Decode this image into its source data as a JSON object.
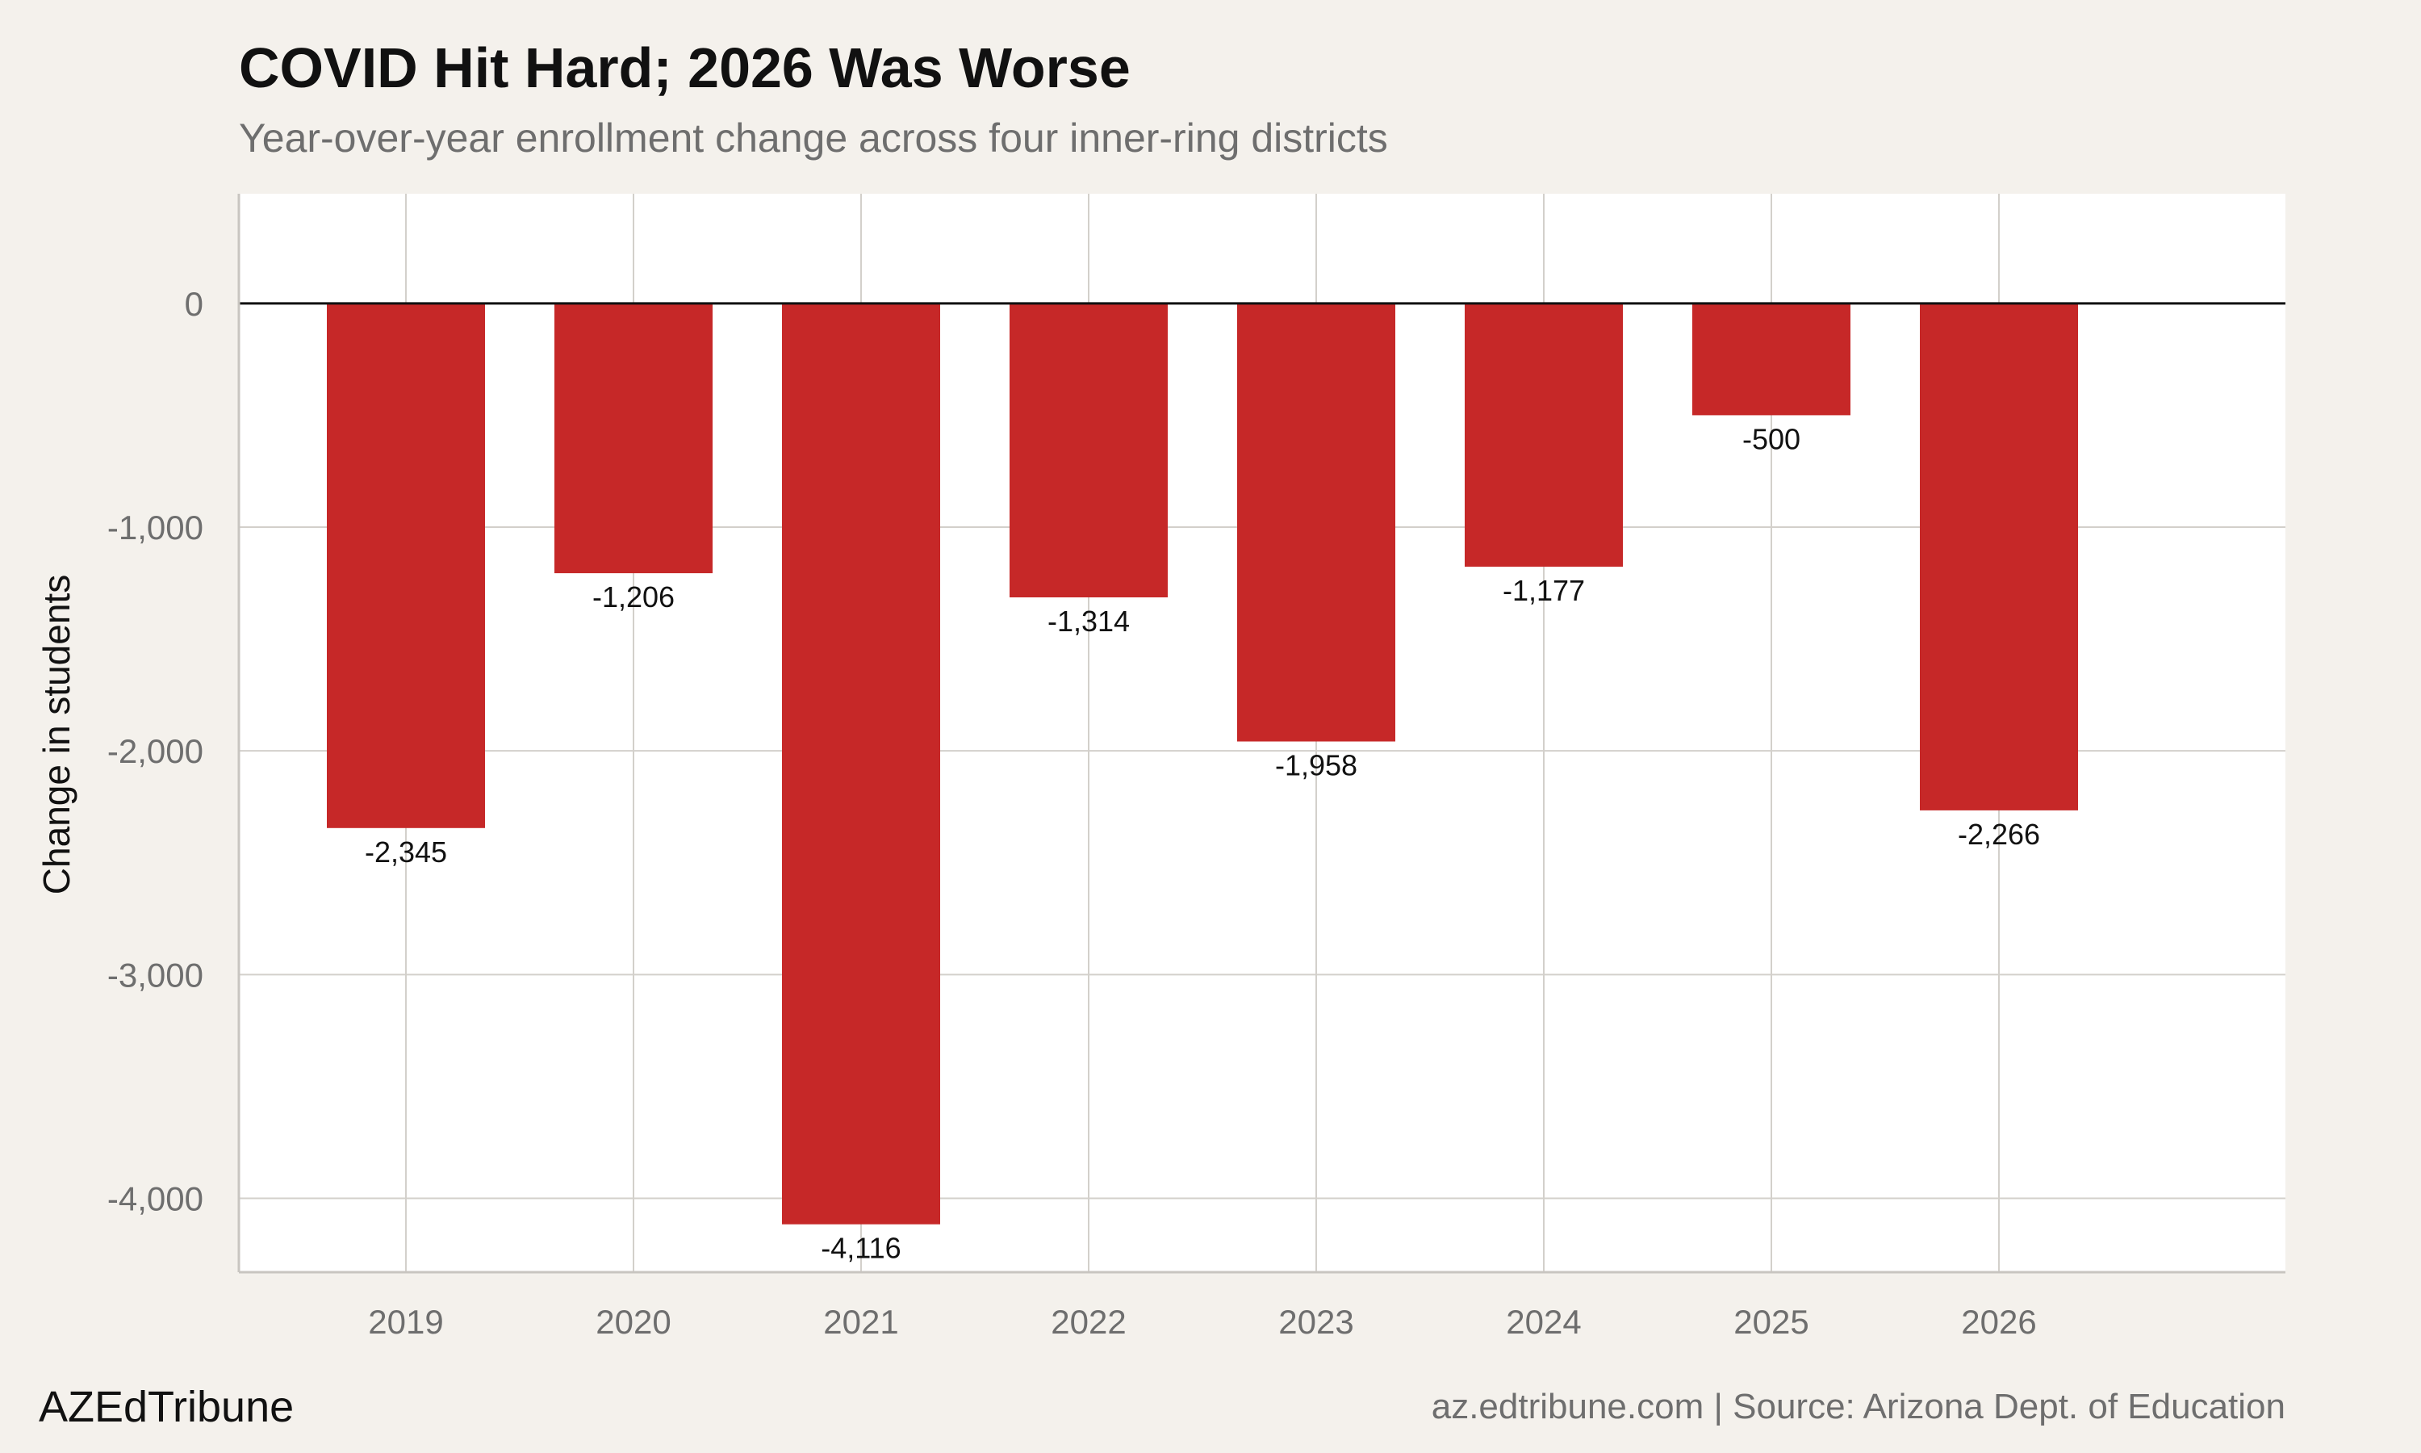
{
  "header": {
    "title": "COVID Hit Hard; 2026 Was Worse",
    "subtitle": "Year-over-year enrollment change across four inner-ring districts"
  },
  "footer": {
    "brand": "AZEdTribune",
    "source": "az.edtribune.com | Source: Arizona Dept. of Education"
  },
  "colors": {
    "bar": "#c62828",
    "background": "#f4f1ec",
    "panel": "#ffffff",
    "grid": "#d3d0cb",
    "zero_line": "#111111"
  },
  "chart_data": {
    "type": "bar",
    "title": "COVID Hit Hard; 2026 Was Worse",
    "subtitle": "Year-over-year enrollment change across four inner-ring districts",
    "xlabel": "",
    "ylabel": "Change in students",
    "categories": [
      "2019",
      "2020",
      "2021",
      "2022",
      "2023",
      "2024",
      "2025",
      "2026"
    ],
    "values": [
      -2345,
      -1206,
      -4116,
      -1314,
      -1958,
      -1177,
      -500,
      -2266
    ],
    "value_labels": [
      "-2,345",
      "-1,206",
      "-4,116",
      "-1,314",
      "-1,958",
      "-1,177",
      "-500",
      "-2,266"
    ],
    "yticks": [
      0,
      -1000,
      -2000,
      -3000,
      -4000
    ],
    "ytick_labels": [
      "0",
      "-1,000",
      "-2,000",
      "-3,000",
      "-4,000"
    ],
    "ylim": [
      -4330,
      490
    ],
    "grid": true,
    "legend": "none"
  }
}
